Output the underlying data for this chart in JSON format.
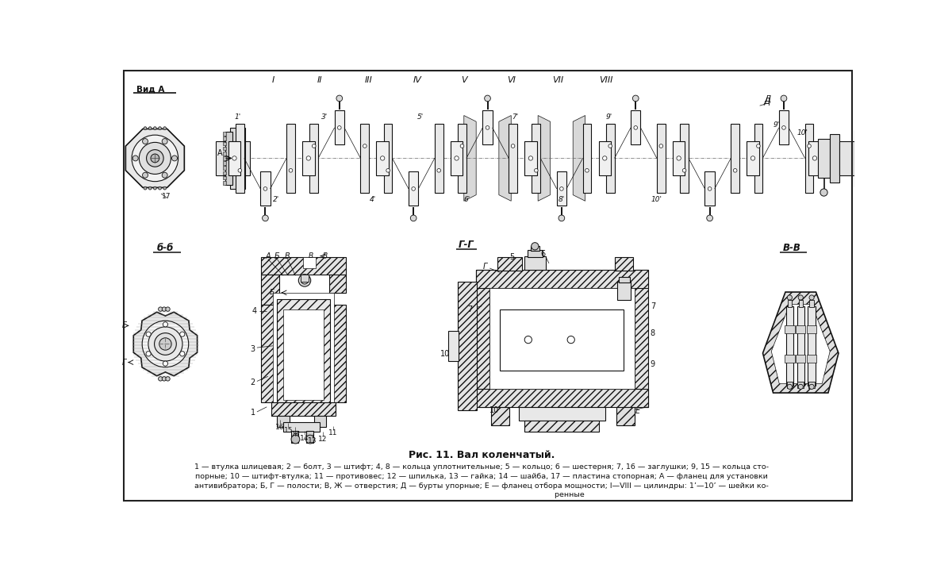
{
  "title": "Рис. 11. Вал коленчатый.",
  "caption_line1": "1 — втулка шлицевая; 2 — болт, 3 — штифт; 4, 8 — кольца уплотнительные; 5 — кольцо; 6 — шестерня; 7, 16 — заглушки; 9, 15 — кольца сто-",
  "caption_line2": "порные; 10 — штифт-втулка; 11 — противовес; 12 — шпилька, 13 — гайка; 14 — шайба, 17 — пластина стопорная; А — фланец для установки",
  "caption_line3": "антивибратора; Б, Г — полости; В, Ж — отверстия; Д — бурты упорные; Е — фланец отбора мощности; I—VIII — цилиндры: 1’—10’ — шейки ко-",
  "caption_line4": "                                                                          ренные",
  "bg_color": "#ffffff",
  "drawing_color": "#111111"
}
